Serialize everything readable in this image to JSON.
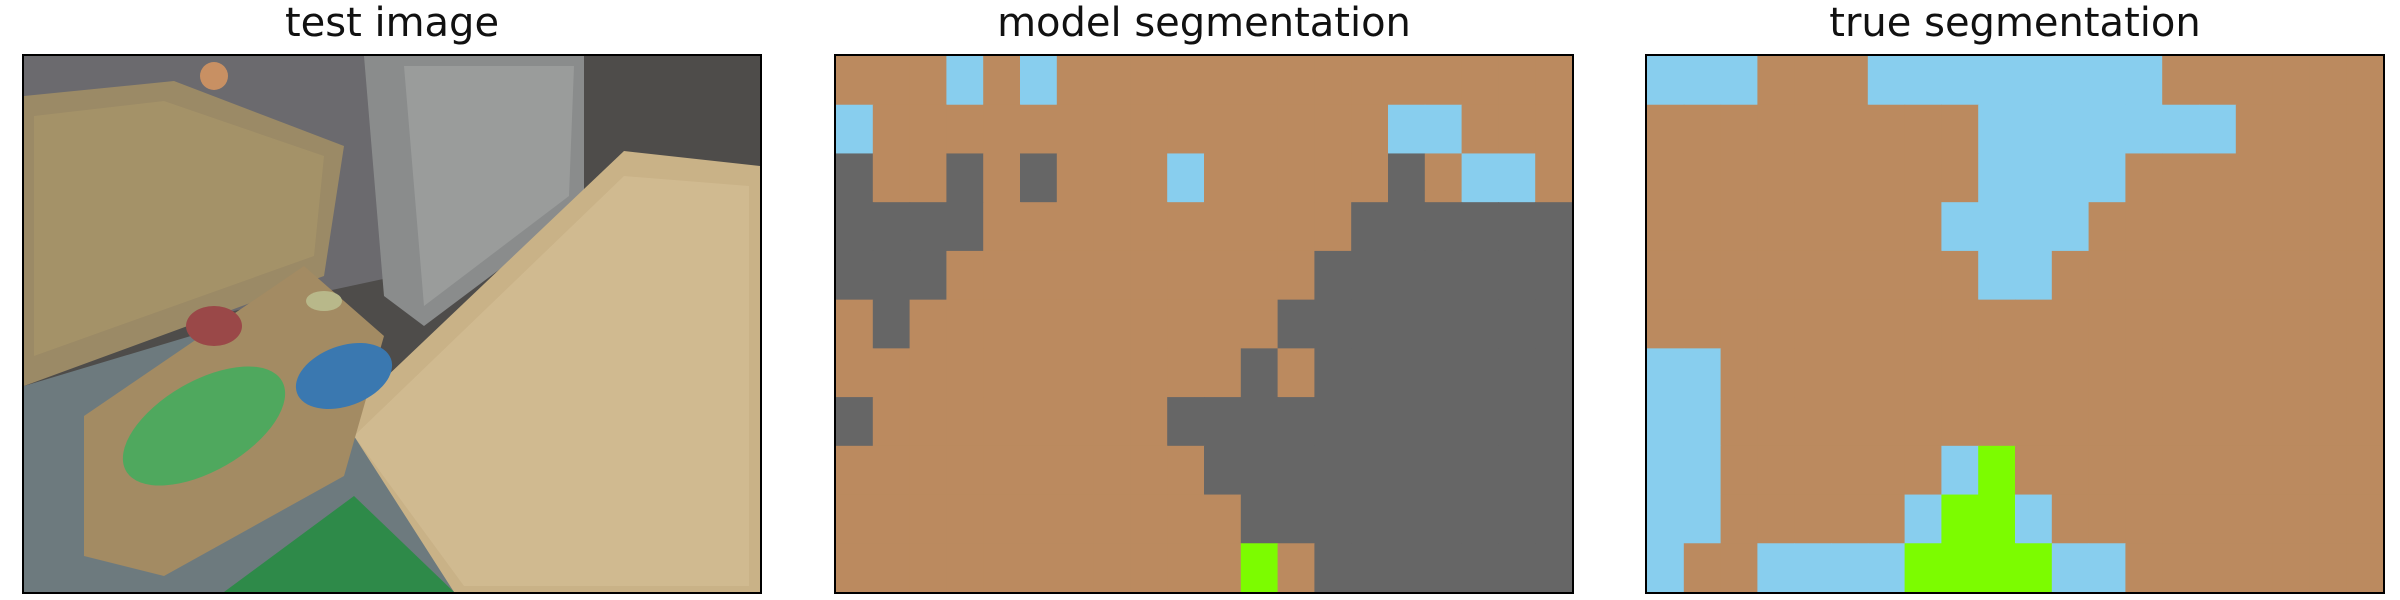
{
  "panels": {
    "test_image": {
      "title": "test image"
    },
    "model_segmentation": {
      "title": "model segmentation",
      "rows": [
        "BBBSBSBBBBBBBBBBBBBB",
        "SBBBBBBBBBBBBBBSSBBB",
        "GBBGBGBBBSBBBBBGBSSB",
        "GGGGBBBBBBBBBBGGGGGG",
        "GGGBBBBBBBBBBGGGGGGG",
        "BGBBBBBBBBBBGGGGGGGG",
        "BBBBBBBBBBBGBGGGGGGG",
        "GBBBBBBBBGGGGGGGGGGG",
        "BBBBBBBBBBGGGGGGGGGG",
        "BBBBBBBBBBBGGGGGGGGG",
        "BBBBBBBBBBBVBGGGGGGG"
      ]
    },
    "true_segmentation": {
      "title": "true segmentation",
      "rows": [
        "SSSBBBSSSSSSSSBBBBBB",
        "BBBBBBBBBSSSSSSSBBBB",
        "BBBBBBBBBSSSSBBBBBBB",
        "BBBBBBBBSSSSBBBBBBBB",
        "BBBBBBBBBSSBBBBBBBBB",
        "BBBBBBBBBBBBBBBBBBBB",
        "SSBBBBBBBBBBBBBBBBBB",
        "SSBBBBBBBBBBBBBBBBBB",
        "SSBBBBBBSVBBBBBBBBBB",
        "SSBBBBBSVVSBBBBBBBBB",
        "SBBSSSSVVVVSSBBBBBBB"
      ]
    }
  },
  "class_colors": {
    "B": "#bb8a5f",
    "S": "#88ceee",
    "G": "#666666",
    "V": "#7cfc00"
  }
}
